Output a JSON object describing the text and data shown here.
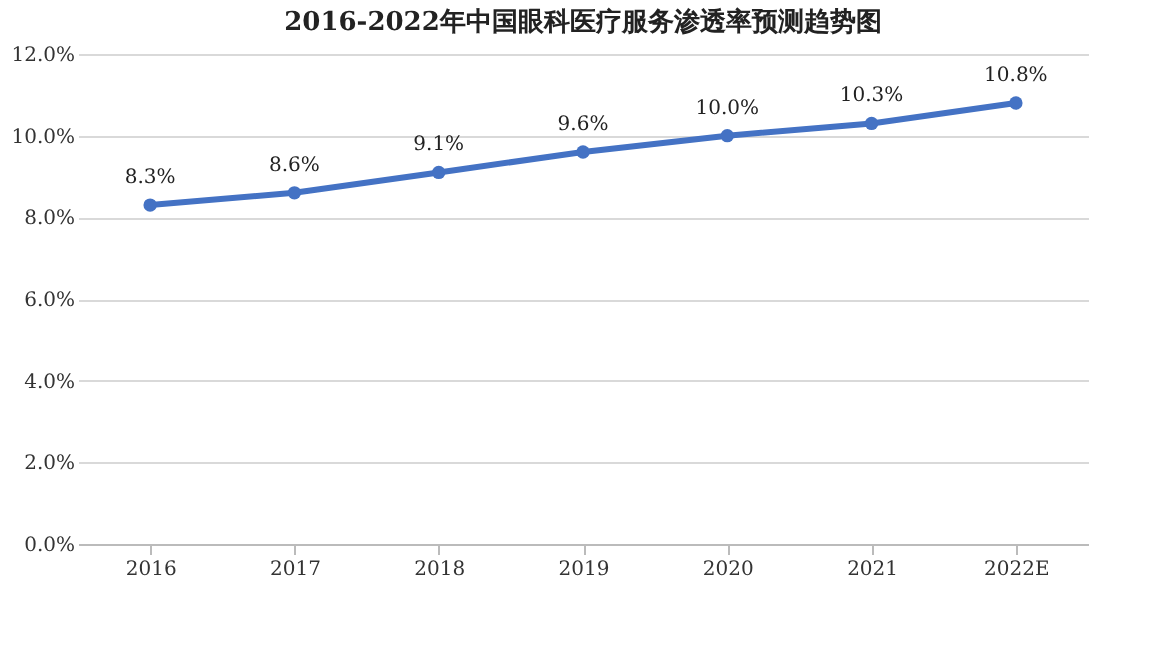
{
  "chart_data": {
    "type": "line",
    "title": "2016-2022年中国眼科医疗服务渗透率预测趋势图",
    "categories": [
      "2016",
      "2017",
      "2018",
      "2019",
      "2020",
      "2021",
      "2022E"
    ],
    "series": [
      {
        "color": "#4472c4",
        "values": [
          8.3,
          8.6,
          9.1,
          9.6,
          10.0,
          10.3,
          10.8
        ],
        "value_labels": [
          "8.3%",
          "8.6%",
          "9.1%",
          "9.6%",
          "10.0%",
          "10.3%",
          "10.8%"
        ]
      }
    ],
    "ylim": [
      0,
      12
    ],
    "yticks": [
      {
        "value": 0,
        "label": "0.0%"
      },
      {
        "value": 2,
        "label": "2.0%"
      },
      {
        "value": 4,
        "label": "4.0%"
      },
      {
        "value": 6,
        "label": "6.0%"
      },
      {
        "value": 8,
        "label": "8.0%"
      },
      {
        "value": 10,
        "label": "10.0%"
      },
      {
        "value": 12,
        "label": "12.0%"
      }
    ],
    "grid": "y",
    "marker": "circle",
    "line_style": "solid"
  }
}
